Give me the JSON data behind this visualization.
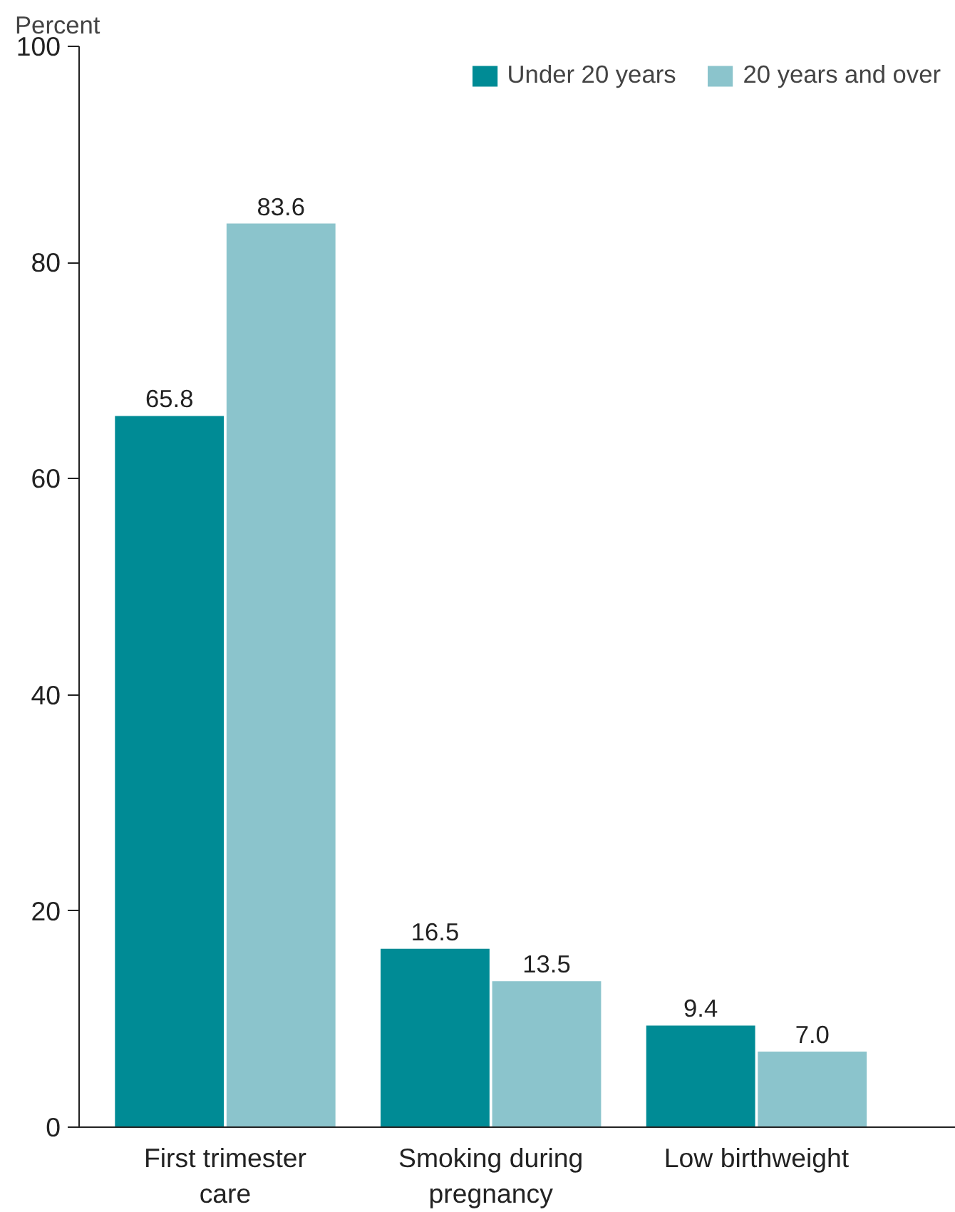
{
  "chart_data": {
    "type": "bar",
    "ylabel": "Percent",
    "categories": [
      "First trimester care",
      "Smoking during pregnancy",
      "Low birthweight"
    ],
    "series": [
      {
        "name": "Under 20 years",
        "color": "#008b95",
        "values": [
          65.8,
          16.5,
          9.4
        ],
        "value_labels": [
          "65.8",
          "16.5",
          "9.4"
        ]
      },
      {
        "name": "20 years and over",
        "color": "#8bc4cc",
        "values": [
          83.6,
          13.5,
          7.0
        ],
        "value_labels": [
          "83.6",
          "13.5",
          "7.0"
        ]
      }
    ],
    "ylim": [
      0,
      100
    ],
    "yticks": [
      0,
      20,
      40,
      60,
      80,
      100
    ],
    "grid": false,
    "legend": "top right"
  }
}
